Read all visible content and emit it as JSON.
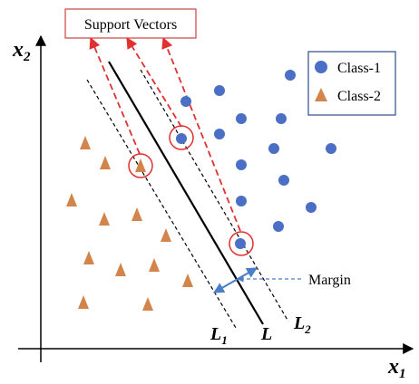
{
  "title_box": {
    "text": "Support Vectors"
  },
  "axes": {
    "x_label": {
      "base": "x",
      "sub": "1"
    },
    "y_label": {
      "base": "x",
      "sub": "2"
    }
  },
  "legend": {
    "items": [
      {
        "label": "Class-1",
        "shape": "circle",
        "color": "#4a6fc4"
      },
      {
        "label": "Class-2",
        "shape": "triangle",
        "color": "#d2844a"
      }
    ]
  },
  "lines": {
    "L1": {
      "base": "L",
      "sub": "1"
    },
    "L": {
      "base": "L",
      "sub": ""
    },
    "L2": {
      "base": "L",
      "sub": "2"
    }
  },
  "margin_label": "Margin",
  "colors": {
    "class1": "#4a6fc4",
    "class2": "#d2844a",
    "support": "#e03030",
    "margin_arrow": "#4a7fc8",
    "axis": "#000000"
  }
}
